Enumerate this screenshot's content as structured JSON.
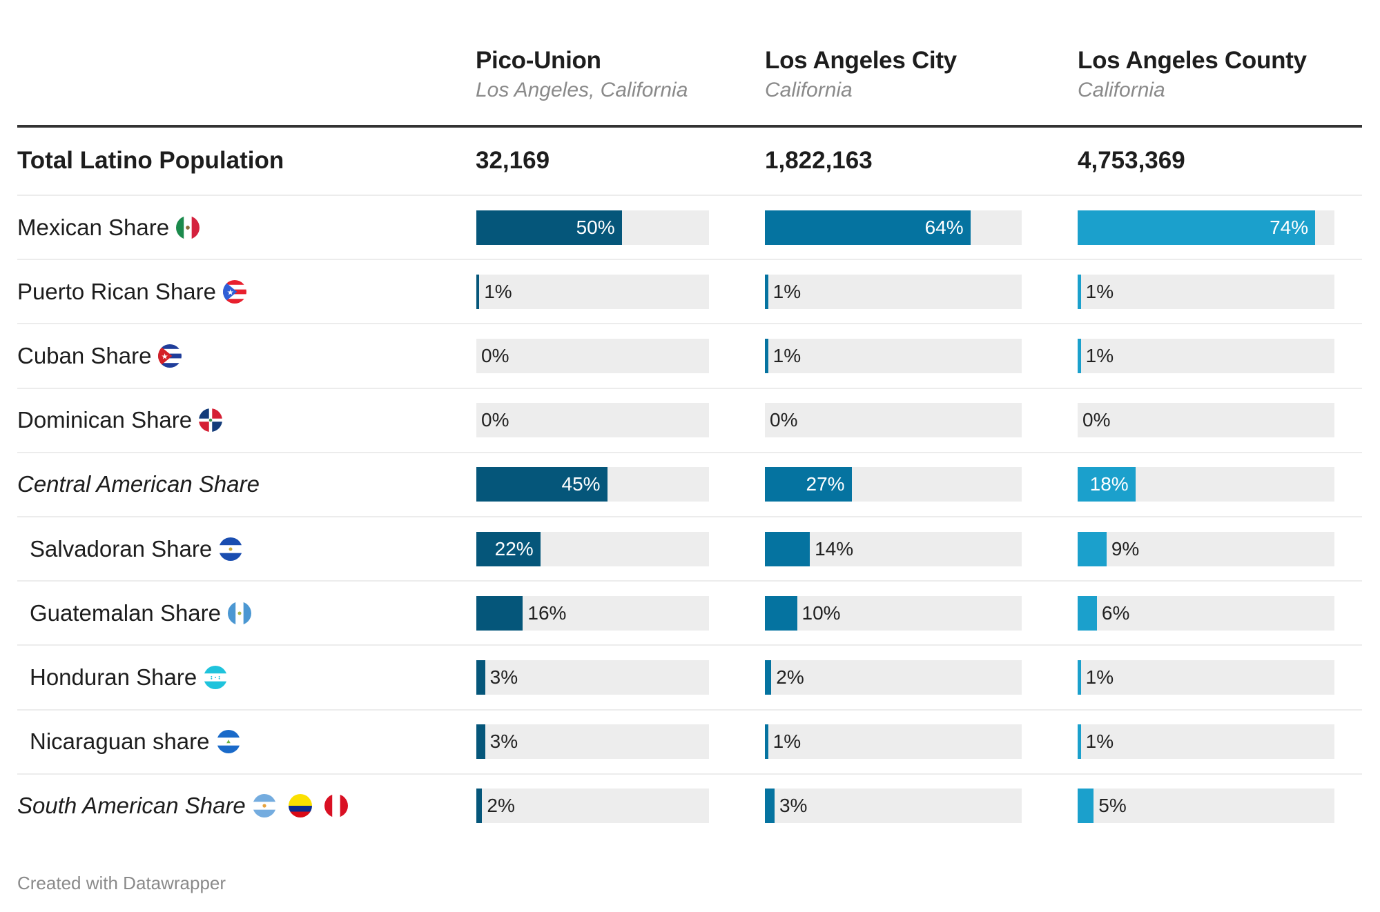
{
  "columns": [
    {
      "title": "Pico-Union",
      "subtitle": "Los Angeles, California",
      "color": "#05567a"
    },
    {
      "title": "Los Angeles City",
      "subtitle": "California",
      "color": "#0573a0"
    },
    {
      "title": "Los Angeles County",
      "subtitle": "California",
      "color": "#1ba0cc"
    }
  ],
  "total_row": {
    "label": "Total Latino Population",
    "values": [
      "32,169",
      "1,822,163",
      "4,753,369"
    ]
  },
  "track_color": "#ededed",
  "footer": "Created with Datawrapper",
  "chart_data": {
    "type": "table",
    "title": "",
    "scale_max_percent": 80,
    "series_names": [
      "Pico-Union",
      "Los Angeles City",
      "Los Angeles County"
    ],
    "rows": [
      {
        "label": "Mexican Share",
        "flags": [
          "mexico-flag-icon"
        ],
        "style": "normal",
        "values": [
          50,
          64,
          74
        ],
        "labels": [
          "50%",
          "64%",
          "74%"
        ]
      },
      {
        "label": "Puerto Rican Share",
        "flags": [
          "puerto-rico-flag-icon"
        ],
        "style": "normal",
        "values": [
          1,
          1,
          1
        ],
        "labels": [
          "1%",
          "1%",
          "1%"
        ]
      },
      {
        "label": "Cuban Share",
        "flags": [
          "cuba-flag-icon"
        ],
        "style": "normal",
        "values": [
          0,
          1,
          1
        ],
        "labels": [
          "0%",
          "1%",
          "1%"
        ]
      },
      {
        "label": "Dominican Share",
        "flags": [
          "dominican-republic-flag-icon"
        ],
        "style": "normal",
        "values": [
          0,
          0,
          0
        ],
        "labels": [
          "0%",
          "0%",
          "0%"
        ]
      },
      {
        "label": "Central American Share",
        "flags": [],
        "style": "italic",
        "values": [
          45,
          27,
          18
        ],
        "labels": [
          "45%",
          "27%",
          "18%"
        ]
      },
      {
        "label": "Salvadoran Share",
        "flags": [
          "el-salvador-flag-icon"
        ],
        "style": "indent",
        "values": [
          22,
          14,
          9
        ],
        "labels": [
          "22%",
          "14%",
          "9%"
        ]
      },
      {
        "label": "Guatemalan Share",
        "flags": [
          "guatemala-flag-icon"
        ],
        "style": "indent",
        "values": [
          16,
          10,
          6
        ],
        "labels": [
          "16%",
          "10%",
          "6%"
        ]
      },
      {
        "label": "Honduran Share",
        "flags": [
          "honduras-flag-icon"
        ],
        "style": "indent",
        "values": [
          3,
          2,
          1
        ],
        "labels": [
          "3%",
          "2%",
          "1%"
        ]
      },
      {
        "label": "Nicaraguan share",
        "flags": [
          "nicaragua-flag-icon"
        ],
        "style": "indent",
        "values": [
          3,
          1,
          1
        ],
        "labels": [
          "3%",
          "1%",
          "1%"
        ]
      },
      {
        "label": "South American Share",
        "flags": [
          "argentina-flag-icon",
          "colombia-flag-icon",
          "peru-flag-icon"
        ],
        "style": "italic",
        "values": [
          2,
          3,
          5
        ],
        "labels": [
          "2%",
          "3%",
          "5%"
        ]
      }
    ]
  }
}
